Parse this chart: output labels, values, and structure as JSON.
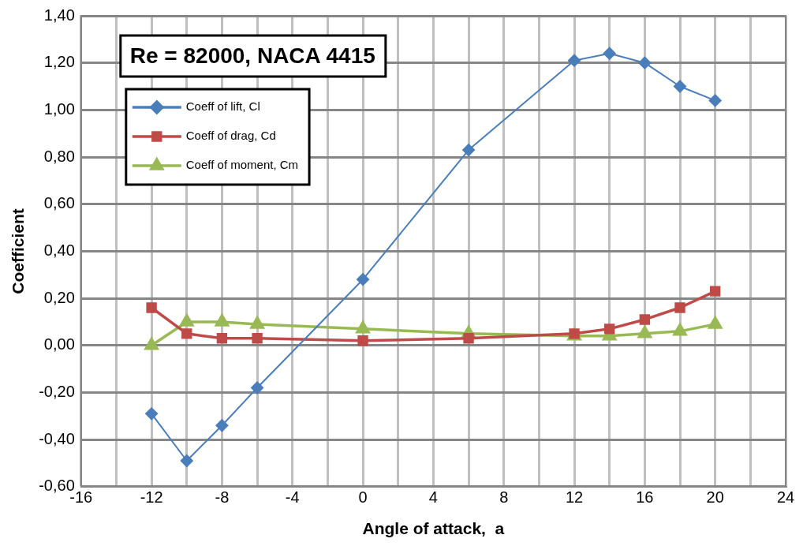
{
  "chart_data": {
    "type": "line",
    "title": "Re = 82000, NACA 4415",
    "xlabel": "Angle of attack,  a",
    "ylabel": "Coefficient",
    "x": [
      -12,
      -10,
      -8,
      -6,
      0,
      6,
      12,
      14,
      16,
      18,
      20
    ],
    "series": [
      {
        "name": "Coeff of lift, Cl",
        "color": "#4a7ebb",
        "marker": "diamond",
        "values": [
          -0.29,
          -0.49,
          -0.34,
          -0.18,
          0.28,
          0.83,
          1.21,
          1.24,
          1.2,
          1.1,
          1.04
        ]
      },
      {
        "name": "Coeff of drag, Cd",
        "color": "#be4b48",
        "marker": "square",
        "values": [
          0.16,
          0.05,
          0.03,
          0.03,
          0.02,
          0.03,
          0.05,
          0.07,
          0.11,
          0.16,
          0.23
        ]
      },
      {
        "name": "Coeff of moment, Cm",
        "color": "#98b954",
        "marker": "triangle",
        "values": [
          0.0,
          0.1,
          0.1,
          0.09,
          0.07,
          0.05,
          0.04,
          0.04,
          0.05,
          0.06,
          0.09
        ]
      }
    ],
    "xlim": [
      -16,
      24
    ],
    "xticks": [
      -16,
      {
        "value": -14,
        "label": null
      },
      -12,
      {
        "value": -10,
        "label": null
      },
      -8,
      {
        "value": -6,
        "label": null
      },
      -4,
      {
        "value": -2,
        "label": null
      },
      0,
      {
        "value": 2,
        "label": null
      },
      4,
      {
        "value": 6,
        "label": null
      },
      8,
      {
        "value": 10,
        "label": null
      },
      12,
      {
        "value": 14,
        "label": null
      },
      16,
      {
        "value": 18,
        "label": null
      },
      20,
      {
        "value": 22,
        "label": null
      },
      24
    ],
    "ylim": [
      -0.6,
      1.4
    ],
    "yticks": [
      {
        "value": -0.6,
        "label": "-0,60"
      },
      {
        "value": -0.4,
        "label": "-0,40"
      },
      {
        "value": -0.2,
        "label": "-0,20"
      },
      {
        "value": 0,
        "label": "0,00"
      },
      {
        "value": 0.2,
        "label": "0,20"
      },
      {
        "value": 0.4,
        "label": "0,40"
      },
      {
        "value": 0.6,
        "label": "0,60"
      },
      {
        "value": 0.8,
        "label": "0,80"
      },
      {
        "value": 1.0,
        "label": "1,00"
      },
      {
        "value": 1.2,
        "label": "1,20"
      },
      {
        "value": 1.4,
        "label": "1,40"
      }
    ],
    "grid": true,
    "legend": "top left"
  }
}
